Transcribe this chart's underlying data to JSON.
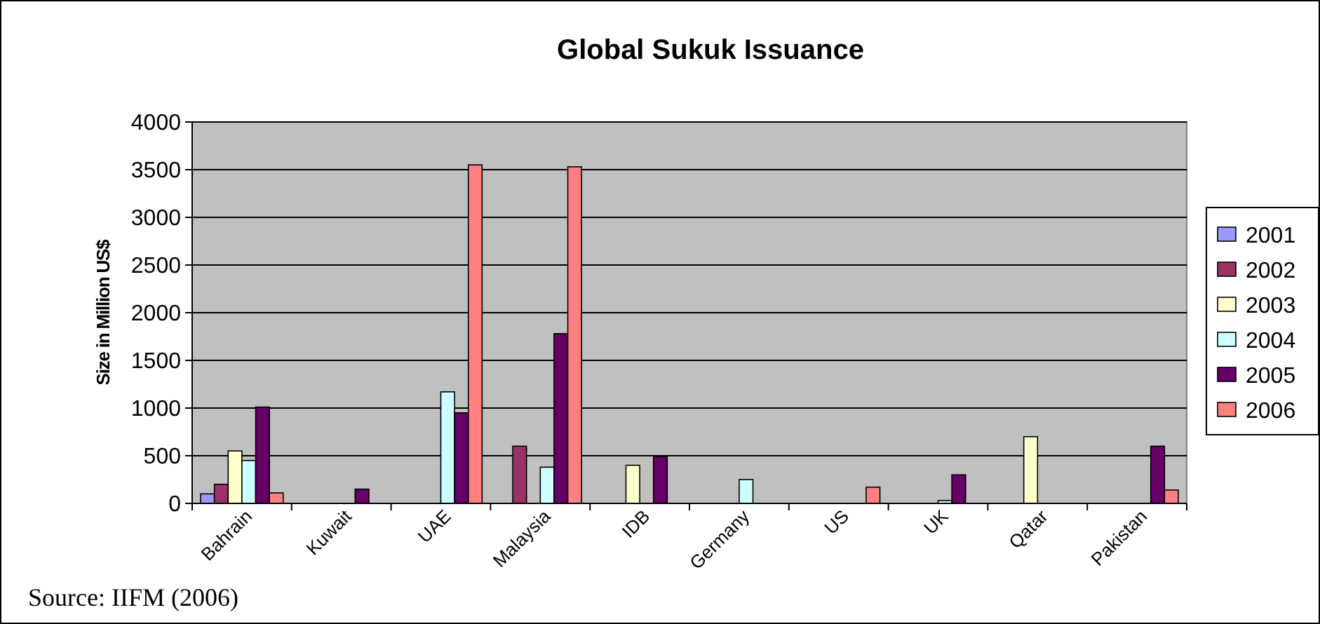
{
  "chart_data": {
    "type": "bar",
    "title": "Global Sukuk Issuance",
    "ylabel": "Size in Million US$",
    "categories": [
      "Bahrain",
      "Kuwait",
      "UAE",
      "Malaysia",
      "IDB",
      "Germany",
      "US",
      "UK",
      "Qatar",
      "Pakistan"
    ],
    "series": [
      {
        "name": "2001",
        "color": "#9999ff",
        "values": [
          100,
          null,
          null,
          null,
          null,
          null,
          null,
          null,
          null,
          null
        ]
      },
      {
        "name": "2002",
        "color": "#993366",
        "values": [
          200,
          null,
          null,
          600,
          null,
          null,
          null,
          null,
          null,
          null
        ]
      },
      {
        "name": "2003",
        "color": "#ffffcc",
        "values": [
          550,
          null,
          null,
          null,
          400,
          null,
          null,
          null,
          700,
          null
        ]
      },
      {
        "name": "2004",
        "color": "#ccffff",
        "values": [
          450,
          null,
          1170,
          380,
          null,
          250,
          null,
          30,
          null,
          null
        ]
      },
      {
        "name": "2005",
        "color": "#660066",
        "values": [
          1010,
          150,
          950,
          1780,
          490,
          null,
          null,
          300,
          null,
          600
        ]
      },
      {
        "name": "2006",
        "color": "#ff8080",
        "values": [
          110,
          null,
          3550,
          3530,
          null,
          null,
          170,
          null,
          null,
          140
        ]
      }
    ],
    "ylim": [
      0,
      4000
    ],
    "yticks": [
      0,
      500,
      1000,
      1500,
      2000,
      2500,
      3000,
      3500,
      4000
    ],
    "grid": "y",
    "legend": "right",
    "annotations": [
      "Source: IIFM (2006)"
    ]
  }
}
